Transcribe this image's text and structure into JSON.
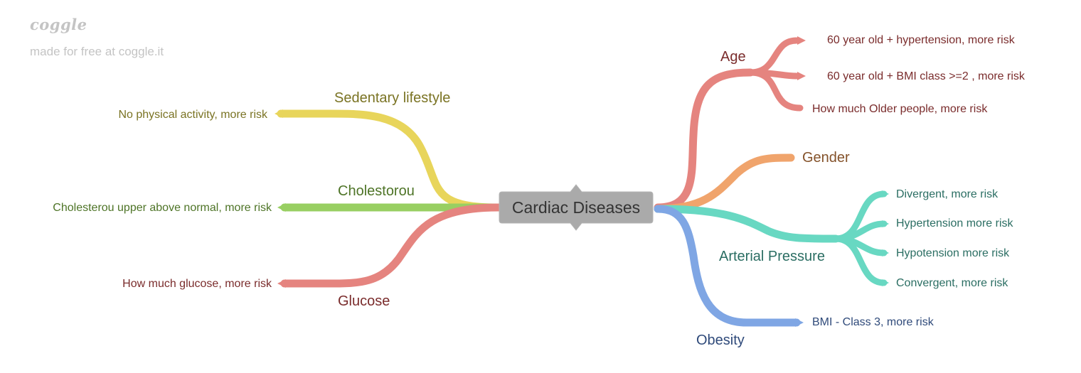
{
  "watermark": {
    "logo": "coggle",
    "subtitle": "made for free at coggle.it"
  },
  "center": {
    "label": "Cardiac Diseases"
  },
  "branches": {
    "sedentary": {
      "label": "Sedentary lifestyle",
      "children": [
        "No physical activity, more risk"
      ],
      "color": "#e8d55b",
      "text_color": "#7a7323"
    },
    "cholesterol": {
      "label": "Cholestorou",
      "children": [
        "Cholesterou upper above normal, more risk"
      ],
      "color": "#98cf62",
      "text_color": "#4e7427"
    },
    "glucose": {
      "label": "Glucose",
      "children": [
        "How much glucose, more risk"
      ],
      "color": "#e5847f",
      "text_color": "#7a2c2c"
    },
    "age": {
      "label": "Age",
      "children": [
        "60 year old + hypertension, more risk",
        "60 year old + BMI class >=2 , more risk",
        "How much Older people, more risk"
      ],
      "color": "#e5847f",
      "text_color": "#7a2c2c"
    },
    "gender": {
      "label": "Gender",
      "children": [],
      "color": "#f0a46c",
      "text_color": "#84522a"
    },
    "pressure": {
      "label": "Arterial Pressure",
      "children": [
        "Divergent, more risk",
        "Hypertension more risk",
        "Hypotension more risk",
        "Convergent, more risk"
      ],
      "color": "#68d8c2",
      "text_color": "#2b6e63"
    },
    "obesity": {
      "label": "Obesity",
      "children": [
        "BMI - Class 3, more risk"
      ],
      "color": "#7fa6e4",
      "text_color": "#2f4a7a"
    }
  },
  "colors": {
    "center_fill": "#aaaaaa",
    "watermark": "#c4c4c4"
  }
}
